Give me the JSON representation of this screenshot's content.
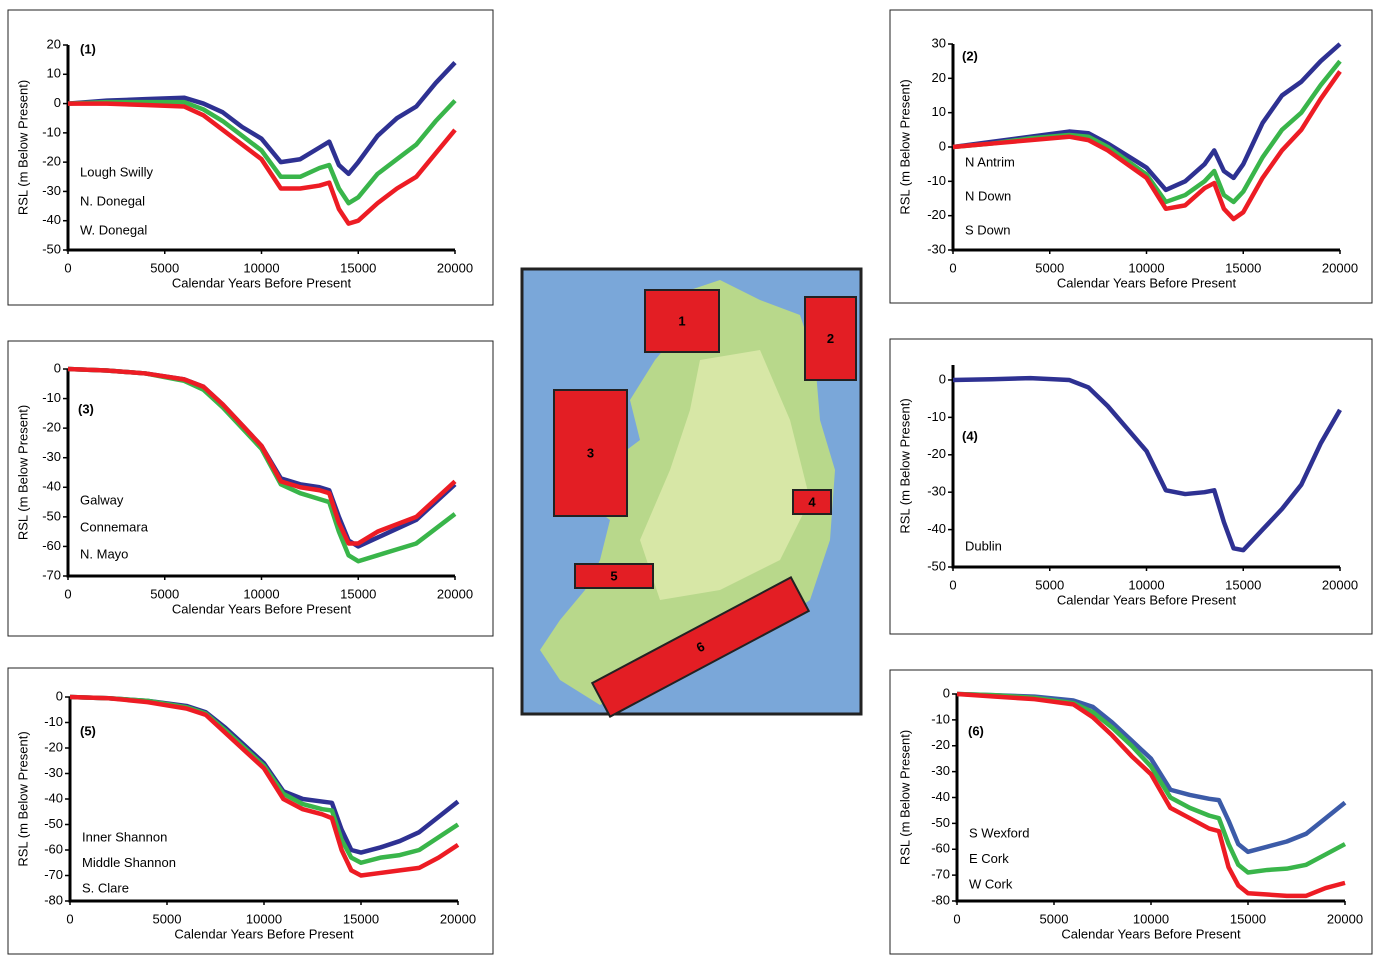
{
  "chart_data": [
    {
      "type": "line",
      "tag": "(1)",
      "xlabel": "Calendar Years Before Present",
      "ylabel": "RSL (m Below Present)",
      "x": [
        0,
        2000,
        4000,
        6000,
        7000,
        8000,
        9000,
        10000,
        11000,
        12000,
        13000,
        13500,
        14000,
        14500,
        15000,
        16000,
        17000,
        18000,
        19000,
        20000
      ],
      "xlim": [
        0,
        20000
      ],
      "xticks": [
        0,
        5000,
        10000,
        15000,
        20000
      ],
      "ylim": [
        -50,
        20
      ],
      "yticks": [
        -50,
        -40,
        -30,
        -20,
        -10,
        0,
        10,
        20
      ],
      "series": [
        {
          "name": "Lough Swilly",
          "color": "#2e3192",
          "values": [
            0,
            1,
            1.5,
            2,
            0,
            -3,
            -8,
            -12,
            -20,
            -19,
            -15,
            -13,
            -21,
            -24,
            -20,
            -11,
            -5,
            -1,
            7,
            14
          ]
        },
        {
          "name": "N. Donegal",
          "color": "#39b54a",
          "values": [
            0,
            0.5,
            0.5,
            0.5,
            -2,
            -6,
            -11,
            -16,
            -25,
            -25,
            -22,
            -21,
            -29,
            -34,
            -32,
            -24,
            -19,
            -14,
            -6,
            1
          ]
        },
        {
          "name": "W. Donegal",
          "color": "#ed1c24",
          "values": [
            0,
            0,
            -0.5,
            -1,
            -4,
            -9,
            -14,
            -19,
            -29,
            -29,
            -28,
            -27,
            -36,
            -41,
            -40,
            -34,
            -29,
            -25,
            -17,
            -9
          ]
        }
      ]
    },
    {
      "type": "line",
      "tag": "(2)",
      "xlabel": "Calendar Years Before Present",
      "ylabel": "RSL (m Below Present)",
      "x": [
        0,
        2000,
        4000,
        6000,
        7000,
        8000,
        9000,
        10000,
        11000,
        12000,
        13000,
        13500,
        14000,
        14500,
        15000,
        16000,
        17000,
        18000,
        19000,
        20000
      ],
      "xlim": [
        0,
        20000
      ],
      "xticks": [
        0,
        5000,
        10000,
        15000,
        20000
      ],
      "ylim": [
        -30,
        30
      ],
      "yticks": [
        -30,
        -20,
        -10,
        0,
        10,
        20,
        30
      ],
      "series": [
        {
          "name": "N Antrim",
          "color": "#2e3192",
          "values": [
            0,
            1.5,
            3,
            4.5,
            4,
            1,
            -2.5,
            -6,
            -12.5,
            -10,
            -5,
            -1,
            -7,
            -9,
            -5,
            7,
            15,
            19,
            25,
            30
          ]
        },
        {
          "name": "N Down",
          "color": "#39b54a",
          "values": [
            0,
            1,
            2.5,
            3.5,
            3,
            0,
            -4,
            -8,
            -16,
            -14,
            -10,
            -7,
            -14,
            -16,
            -13,
            -3,
            5,
            10,
            18,
            25
          ]
        },
        {
          "name": "S Down",
          "color": "#ed1c24",
          "values": [
            0,
            1,
            2,
            3,
            2,
            -1,
            -5,
            -9,
            -18,
            -17,
            -12,
            -10.5,
            -18,
            -21,
            -19,
            -9,
            -1,
            5,
            14,
            22
          ]
        }
      ]
    },
    {
      "type": "line",
      "tag": "(3)",
      "xlabel": "Calendar Years Before Present",
      "ylabel": "RSL (m Below Present)",
      "x": [
        0,
        2000,
        4000,
        6000,
        7000,
        8000,
        9000,
        10000,
        11000,
        12000,
        13000,
        13500,
        14000,
        14500,
        15000,
        16000,
        17000,
        18000,
        19000,
        20000
      ],
      "xlim": [
        0,
        20000
      ],
      "xticks": [
        0,
        5000,
        10000,
        15000,
        20000
      ],
      "ylim": [
        -70,
        0
      ],
      "yticks": [
        -70,
        -60,
        -50,
        -40,
        -30,
        -20,
        -10,
        0
      ],
      "series": [
        {
          "name": "Galway",
          "color": "#2e3192",
          "values": [
            0,
            -0.5,
            -1.5,
            -3.5,
            -6,
            -12,
            -19,
            -26,
            -37,
            -39,
            -40,
            -41,
            -50,
            -58,
            -60,
            -57,
            -54,
            -51,
            -45,
            -39
          ]
        },
        {
          "name": "Connemara",
          "color": "#39b54a",
          "values": [
            0,
            -0.5,
            -1.5,
            -4,
            -7,
            -13,
            -20,
            -27,
            -39,
            -42,
            -44,
            -45,
            -55,
            -63,
            -65,
            -63,
            -61,
            -59,
            -54,
            -49
          ]
        },
        {
          "name": "N. Mayo",
          "color": "#ed1c24",
          "values": [
            0,
            -0.5,
            -1.5,
            -3.5,
            -6,
            -12,
            -19,
            -26,
            -38,
            -40,
            -41,
            -42,
            -52,
            -59,
            -59,
            -55,
            -52.5,
            -50,
            -44,
            -38
          ]
        }
      ]
    },
    {
      "type": "line",
      "tag": "(4)",
      "xlabel": "Calendar Years Before Present",
      "ylabel": "RSL (m Below Present)",
      "x": [
        0,
        2000,
        4000,
        6000,
        7000,
        8000,
        9000,
        10000,
        11000,
        12000,
        13000,
        13500,
        14000,
        14500,
        15000,
        16000,
        17000,
        18000,
        19000,
        20000
      ],
      "xlim": [
        0,
        20000
      ],
      "xticks": [
        0,
        5000,
        10000,
        15000,
        20000
      ],
      "ylim": [
        -50,
        4
      ],
      "yticks": [
        -50,
        -40,
        -30,
        -20,
        -10,
        0
      ],
      "series": [
        {
          "name": "Dublin",
          "color": "#2e3192",
          "values": [
            0,
            0.2,
            0.5,
            0,
            -2,
            -7,
            -13,
            -19,
            -29.5,
            -30.5,
            -30,
            -29.5,
            -38,
            -45,
            -45.5,
            -40,
            -34.5,
            -28,
            -17,
            -8
          ]
        }
      ]
    },
    {
      "type": "line",
      "tag": "(5)",
      "xlabel": "Calendar Years Before Present",
      "ylabel": "RSL (m Below Present)",
      "x": [
        0,
        2000,
        4000,
        6000,
        7000,
        8000,
        9000,
        10000,
        11000,
        12000,
        13000,
        13500,
        14000,
        14500,
        15000,
        16000,
        17000,
        18000,
        19000,
        20000
      ],
      "xlim": [
        0,
        20000
      ],
      "xticks": [
        0,
        5000,
        10000,
        15000,
        20000
      ],
      "ylim": [
        -80,
        0
      ],
      "yticks": [
        -80,
        -70,
        -60,
        -50,
        -40,
        -30,
        -20,
        -10,
        0
      ],
      "series": [
        {
          "name": "Inner Shannon",
          "color": "#2e3192",
          "values": [
            0,
            -0.5,
            -1.5,
            -3.5,
            -6,
            -12,
            -19,
            -26,
            -37,
            -40,
            -41,
            -41.5,
            -52,
            -60,
            -61,
            -59,
            -56.5,
            -53,
            -47,
            -41
          ]
        },
        {
          "name": "Middle Shannon",
          "color": "#39b54a",
          "values": [
            0,
            -0.5,
            -1.5,
            -4,
            -6.5,
            -13,
            -20,
            -27,
            -38,
            -42,
            -44,
            -44.5,
            -56,
            -63,
            -65,
            -63,
            -62,
            -60,
            -55,
            -50
          ]
        },
        {
          "name": "S. Clare",
          "color": "#ed1c24",
          "values": [
            0,
            -0.5,
            -2,
            -4.5,
            -7,
            -14,
            -21,
            -28,
            -40,
            -44,
            -46,
            -47.5,
            -60,
            -68,
            -70,
            -69,
            -68,
            -67,
            -63,
            -58
          ]
        }
      ]
    },
    {
      "type": "line",
      "tag": "(6)",
      "xlabel": "Calendar Years Before Present",
      "ylabel": "RSL (m Below Present)",
      "x": [
        0,
        2000,
        4000,
        6000,
        7000,
        8000,
        9000,
        10000,
        11000,
        12000,
        13000,
        13500,
        14000,
        14500,
        15000,
        16000,
        17000,
        18000,
        19000,
        20000
      ],
      "xlim": [
        0,
        20000
      ],
      "xticks": [
        0,
        5000,
        10000,
        15000,
        20000
      ],
      "ylim": [
        -80,
        0
      ],
      "yticks": [
        -80,
        -70,
        -60,
        -50,
        -40,
        -30,
        -20,
        -10,
        0
      ],
      "series": [
        {
          "name": "S Wexford",
          "color": "#3c5ba8",
          "values": [
            0,
            -0.5,
            -1,
            -2.5,
            -5,
            -11,
            -18,
            -25,
            -37,
            -39,
            -40.5,
            -41,
            -49,
            -58,
            -61,
            -59,
            -57,
            -54,
            -48,
            -42
          ]
        },
        {
          "name": "E Cork",
          "color": "#39b54a",
          "values": [
            0,
            -0.5,
            -1.5,
            -3.5,
            -7,
            -13,
            -20,
            -28,
            -40,
            -44,
            -47,
            -48,
            -58,
            -66,
            -69,
            -68,
            -67.5,
            -66,
            -62,
            -58
          ]
        },
        {
          "name": "W Cork",
          "color": "#ed1c24",
          "values": [
            0,
            -1,
            -2,
            -4,
            -9,
            -16,
            -24,
            -31,
            -44,
            -48,
            -52,
            -53,
            -67,
            -74,
            -77,
            -77.5,
            -78,
            -78,
            -75,
            -73
          ]
        }
      ]
    }
  ],
  "map": {
    "regions": [
      "1",
      "2",
      "3",
      "4",
      "5",
      "6"
    ]
  }
}
